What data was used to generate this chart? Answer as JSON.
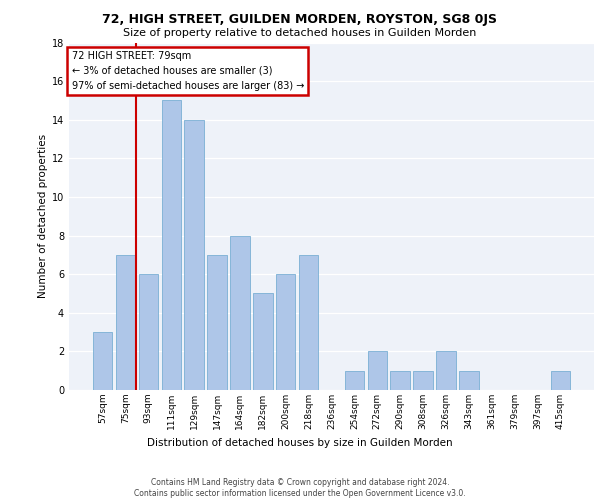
{
  "title": "72, HIGH STREET, GUILDEN MORDEN, ROYSTON, SG8 0JS",
  "subtitle": "Size of property relative to detached houses in Guilden Morden",
  "xlabel": "Distribution of detached houses by size in Guilden Morden",
  "ylabel": "Number of detached properties",
  "categories": [
    "57sqm",
    "75sqm",
    "93sqm",
    "111sqm",
    "129sqm",
    "147sqm",
    "164sqm",
    "182sqm",
    "200sqm",
    "218sqm",
    "236sqm",
    "254sqm",
    "272sqm",
    "290sqm",
    "308sqm",
    "326sqm",
    "343sqm",
    "361sqm",
    "379sqm",
    "397sqm",
    "415sqm"
  ],
  "values": [
    3,
    7,
    6,
    15,
    14,
    7,
    8,
    5,
    6,
    7,
    0,
    1,
    2,
    1,
    1,
    2,
    1,
    0,
    0,
    0,
    1
  ],
  "bar_color": "#aec6e8",
  "bar_edge_color": "#7aafd4",
  "annotation_text": "72 HIGH STREET: 79sqm\n← 3% of detached houses are smaller (3)\n97% of semi-detached houses are larger (83) →",
  "annotation_box_color": "#ffffff",
  "annotation_border_color": "#cc0000",
  "vline_color": "#cc0000",
  "vline_x": 1.45,
  "ylim": [
    0,
    18
  ],
  "yticks": [
    0,
    2,
    4,
    6,
    8,
    10,
    12,
    14,
    16,
    18
  ],
  "footer_line1": "Contains HM Land Registry data © Crown copyright and database right 2024.",
  "footer_line2": "Contains public sector information licensed under the Open Government Licence v3.0.",
  "bg_color": "#eef2f9",
  "grid_color": "#ffffff",
  "title_fontsize": 9,
  "subtitle_fontsize": 8,
  "footer_fontsize": 5.5,
  "bar_label_fontsize": 7,
  "tick_fontsize": 6.5,
  "ylabel_fontsize": 7.5,
  "xlabel_fontsize": 7.5,
  "annotation_fontsize": 7
}
